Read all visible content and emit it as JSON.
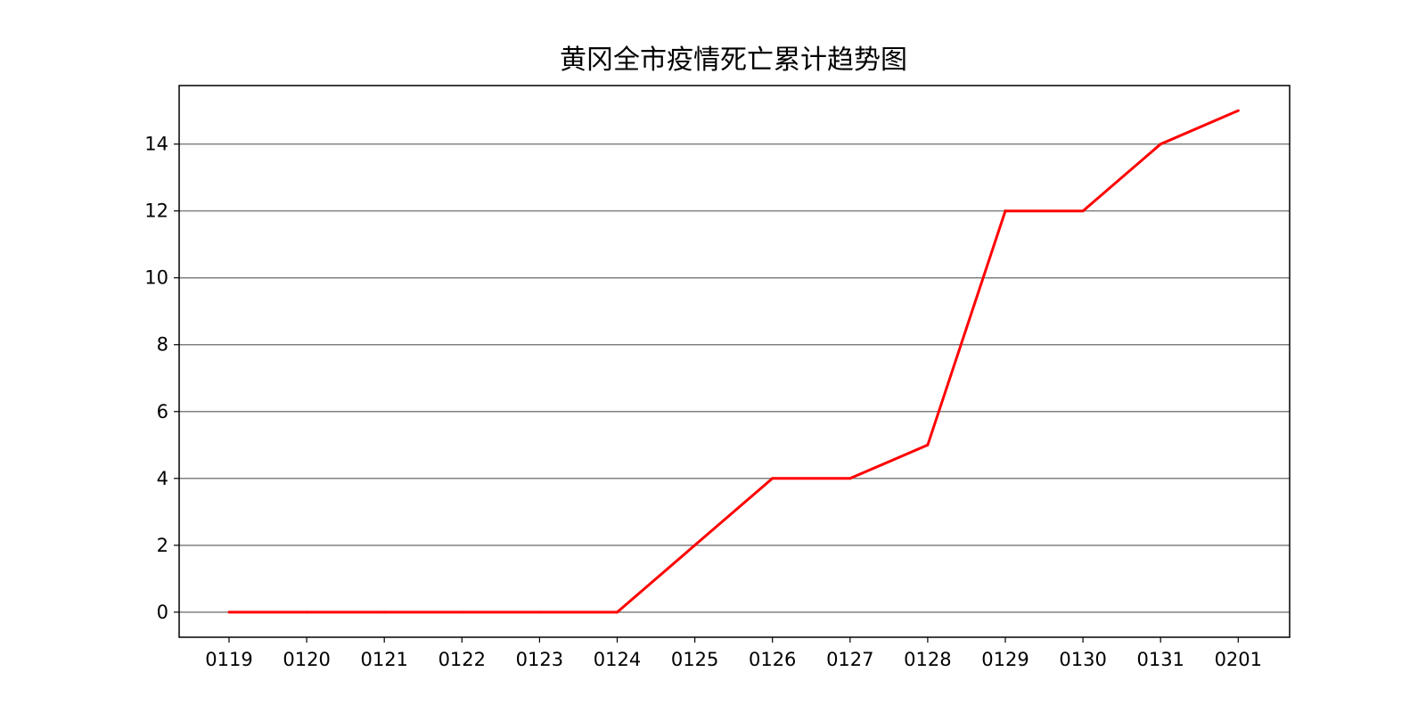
{
  "chart_data": {
    "type": "line",
    "title": "黄冈全市疫情死亡累计趋势图",
    "xlabel": "",
    "ylabel": "",
    "categories": [
      "0119",
      "0120",
      "0121",
      "0122",
      "0123",
      "0124",
      "0125",
      "0126",
      "0127",
      "0128",
      "0129",
      "0130",
      "0131",
      "0201"
    ],
    "series": [
      {
        "values": [
          0,
          0,
          0,
          0,
          0,
          0,
          2,
          4,
          4,
          5,
          12,
          12,
          14,
          15
        ],
        "color": "#ff0000"
      }
    ],
    "yticks": [
      0,
      2,
      4,
      6,
      8,
      10,
      12,
      14
    ],
    "ylim": [
      -0.75,
      15.75
    ],
    "grid": "horizontal",
    "grid_color": "#808080",
    "legend": "none"
  }
}
